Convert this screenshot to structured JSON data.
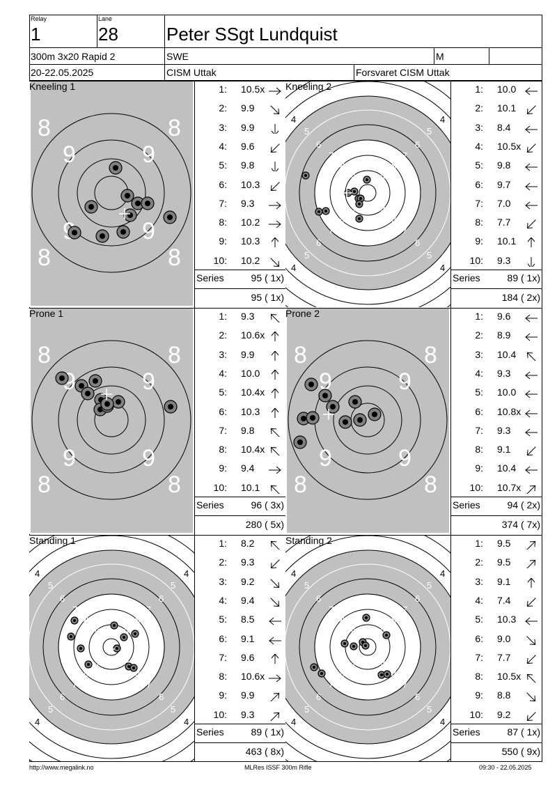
{
  "header": {
    "relay_label": "Relay",
    "relay": "1",
    "lane_label": "Lane",
    "lane": "28",
    "name": "Peter SSgt Lundquist",
    "event": "300m 3x20 Rapid 2",
    "nation": "SWE",
    "gender": "M",
    "dates": "20-22.05.2025",
    "competition": "CISM Uttak",
    "organizer": "Forsvaret CISM Uttak"
  },
  "panels": [
    {
      "title": "Kneeling 1",
      "target_type": "grey",
      "shots": [
        {
          "n": "1:",
          "v": "10.5x",
          "dir": "right"
        },
        {
          "n": "2:",
          "v": "9.9",
          "dir": "down-right"
        },
        {
          "n": "3:",
          "v": "9.9",
          "dir": "down"
        },
        {
          "n": "4:",
          "v": "9.6",
          "dir": "down-left"
        },
        {
          "n": "5:",
          "v": "9.8",
          "dir": "down"
        },
        {
          "n": "6:",
          "v": "10.3",
          "dir": "down-left"
        },
        {
          "n": "7:",
          "v": "9.3",
          "dir": "right"
        },
        {
          "n": "8:",
          "v": "10.2",
          "dir": "right"
        },
        {
          "n": "9:",
          "v": "10.3",
          "dir": "up"
        },
        {
          "n": "10:",
          "v": "10.2",
          "dir": "down-right"
        }
      ],
      "series_label": "Series",
      "series": "95 ( 1x)",
      "cumulative": "95 ( 1x)"
    },
    {
      "title": "Kneeling 2",
      "target_type": "small",
      "shots": [
        {
          "n": "1:",
          "v": "10.0",
          "dir": "left"
        },
        {
          "n": "2:",
          "v": "10.1",
          "dir": "down-left"
        },
        {
          "n": "3:",
          "v": "8.4",
          "dir": "left"
        },
        {
          "n": "4:",
          "v": "10.5x",
          "dir": "down-left"
        },
        {
          "n": "5:",
          "v": "9.8",
          "dir": "left"
        },
        {
          "n": "6:",
          "v": "9.7",
          "dir": "left"
        },
        {
          "n": "7:",
          "v": "7.0",
          "dir": "left"
        },
        {
          "n": "8:",
          "v": "7.7",
          "dir": "down-left"
        },
        {
          "n": "9:",
          "v": "10.1",
          "dir": "up"
        },
        {
          "n": "10:",
          "v": "9.3",
          "dir": "down"
        }
      ],
      "series_label": "Series",
      "series": "89 ( 1x)",
      "cumulative": "184 ( 2x)"
    },
    {
      "title": "Prone 1",
      "target_type": "grey",
      "shots": [
        {
          "n": "1:",
          "v": "9.3",
          "dir": "up-left"
        },
        {
          "n": "2:",
          "v": "10.6x",
          "dir": "up"
        },
        {
          "n": "3:",
          "v": "9.9",
          "dir": "up"
        },
        {
          "n": "4:",
          "v": "10.0",
          "dir": "up"
        },
        {
          "n": "5:",
          "v": "10.4x",
          "dir": "up"
        },
        {
          "n": "6:",
          "v": "10.3",
          "dir": "up"
        },
        {
          "n": "7:",
          "v": "9.8",
          "dir": "up-left"
        },
        {
          "n": "8:",
          "v": "10.4x",
          "dir": "up-left"
        },
        {
          "n": "9:",
          "v": "9.4",
          "dir": "right"
        },
        {
          "n": "10:",
          "v": "10.1",
          "dir": "up-left"
        }
      ],
      "series_label": "Series",
      "series": "96 ( 3x)",
      "cumulative": "280 ( 5x)"
    },
    {
      "title": "Prone 2",
      "target_type": "grey",
      "shots": [
        {
          "n": "1:",
          "v": "9.6",
          "dir": "left"
        },
        {
          "n": "2:",
          "v": "8.9",
          "dir": "left"
        },
        {
          "n": "3:",
          "v": "10.4",
          "dir": "up-left"
        },
        {
          "n": "4:",
          "v": "9.3",
          "dir": "left"
        },
        {
          "n": "5:",
          "v": "10.0",
          "dir": "left"
        },
        {
          "n": "6:",
          "v": "10.8x",
          "dir": "left"
        },
        {
          "n": "7:",
          "v": "9.3",
          "dir": "left"
        },
        {
          "n": "8:",
          "v": "9.1",
          "dir": "down-left"
        },
        {
          "n": "9:",
          "v": "10.4",
          "dir": "left"
        },
        {
          "n": "10:",
          "v": "10.7x",
          "dir": "up-right"
        }
      ],
      "series_label": "Series",
      "series": "94 ( 2x)",
      "cumulative": "374 ( 7x)"
    },
    {
      "title": "Standing 1",
      "target_type": "small",
      "shots": [
        {
          "n": "1:",
          "v": "8.2",
          "dir": "up-left"
        },
        {
          "n": "2:",
          "v": "9.3",
          "dir": "down-left"
        },
        {
          "n": "3:",
          "v": "9.2",
          "dir": "down-right"
        },
        {
          "n": "4:",
          "v": "9.4",
          "dir": "down-right"
        },
        {
          "n": "5:",
          "v": "8.5",
          "dir": "left"
        },
        {
          "n": "6:",
          "v": "9.1",
          "dir": "left"
        },
        {
          "n": "7:",
          "v": "9.6",
          "dir": "up"
        },
        {
          "n": "8:",
          "v": "10.6x",
          "dir": "right"
        },
        {
          "n": "9:",
          "v": "9.9",
          "dir": "up-right"
        },
        {
          "n": "10:",
          "v": "9.3",
          "dir": "up-right"
        }
      ],
      "series_label": "Series",
      "series": "89 ( 1x)",
      "cumulative": "463 ( 8x)"
    },
    {
      "title": "Standing 2",
      "target_type": "small",
      "shots": [
        {
          "n": "1:",
          "v": "9.5",
          "dir": "up-right"
        },
        {
          "n": "2:",
          "v": "9.5",
          "dir": "up-right"
        },
        {
          "n": "3:",
          "v": "9.1",
          "dir": "up"
        },
        {
          "n": "4:",
          "v": "7.4",
          "dir": "down-left"
        },
        {
          "n": "5:",
          "v": "10.3",
          "dir": "left"
        },
        {
          "n": "6:",
          "v": "9.0",
          "dir": "down-right"
        },
        {
          "n": "7:",
          "v": "7.7",
          "dir": "down-left"
        },
        {
          "n": "8:",
          "v": "10.5x",
          "dir": "up-left"
        },
        {
          "n": "9:",
          "v": "8.8",
          "dir": "down-right"
        },
        {
          "n": "10:",
          "v": "9.2",
          "dir": "down-left"
        }
      ],
      "series_label": "Series",
      "series": "87 ( 1x)",
      "cumulative": "550 ( 9x)"
    }
  ],
  "footer": {
    "url": "http://www.megalink.no",
    "software": "MLRes ISSF 300m Rifle",
    "timestamp": "09:30 - 22.05.2025"
  }
}
